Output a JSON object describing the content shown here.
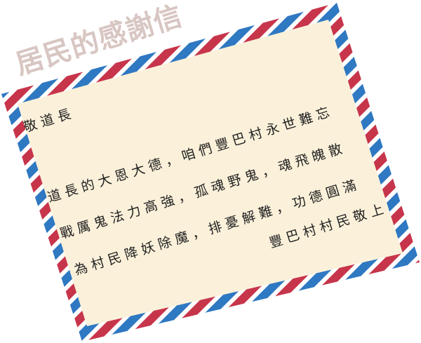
{
  "title": "居民的感謝信",
  "letter": {
    "salutation": "敬道長",
    "lines": [
      "道長的大恩大德，咱們豐巴村永世難忘",
      "戰厲鬼法力高強，孤魂野鬼，魂飛魄散",
      "為村民降妖除魔，排憂解難，功德圓滿"
    ],
    "signature": "豐巴村村民敬上"
  },
  "colors": {
    "paper": "#fbf1da",
    "stripe_red": "#c7354b",
    "stripe_blue": "#2f78c2",
    "title_color": "#d8c6c2"
  }
}
